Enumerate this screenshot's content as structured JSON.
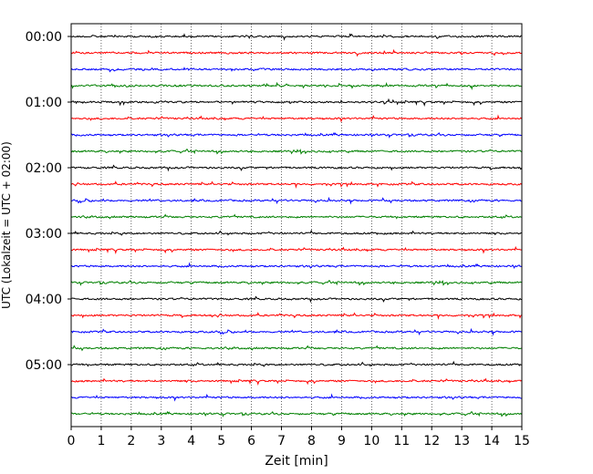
{
  "chart_data": {
    "type": "line",
    "title": "",
    "xlabel": "Zeit  [min]",
    "ylabel": "UTC (Lokalzeit = UTC + 02:00)",
    "xlim": [
      0,
      15
    ],
    "x_ticks": [
      "0",
      "1",
      "2",
      "3",
      "4",
      "5",
      "6",
      "7",
      "8",
      "9",
      "10",
      "11",
      "12",
      "13",
      "14",
      "15"
    ],
    "y_ticks": [
      "00:00",
      "01:00",
      "02:00",
      "03:00",
      "04:00",
      "05:00"
    ],
    "trace_interval_minutes": 15,
    "trace_count": 24,
    "trace_colors": [
      "#000000",
      "#ff0000",
      "#0000ff",
      "#008000"
    ],
    "x_grid": "dotted vertical lines at each minute",
    "legend": "none"
  }
}
